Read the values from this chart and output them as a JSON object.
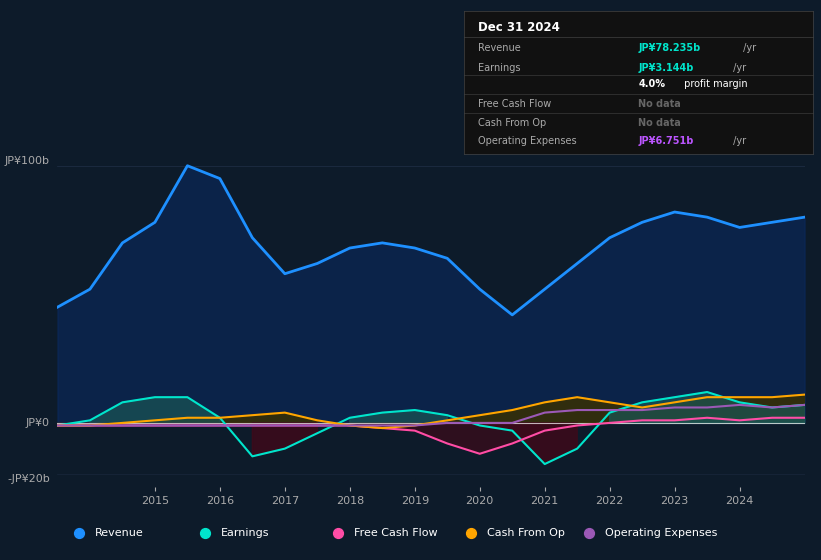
{
  "bg_color": "#0d1b2a",
  "plot_bg_color": "#0d1b2a",
  "ylim": [
    -25,
    110
  ],
  "x_years": [
    2013.5,
    2014,
    2014.5,
    2015,
    2015.5,
    2016,
    2016.5,
    2017,
    2017.5,
    2018,
    2018.5,
    2019,
    2019.5,
    2020,
    2020.5,
    2021,
    2021.5,
    2022,
    2022.5,
    2023,
    2023.5,
    2024,
    2024.5,
    2025
  ],
  "revenue": [
    45,
    52,
    70,
    78,
    100,
    95,
    72,
    58,
    62,
    68,
    70,
    68,
    64,
    52,
    42,
    52,
    62,
    72,
    78,
    82,
    80,
    76,
    78,
    80
  ],
  "earnings": [
    -1,
    1,
    8,
    10,
    10,
    2,
    -13,
    -10,
    -4,
    2,
    4,
    5,
    3,
    -1,
    -3,
    -16,
    -10,
    4,
    8,
    10,
    12,
    8,
    6,
    7
  ],
  "free_cash_flow": [
    -1,
    -1,
    -1,
    -1,
    -1,
    -1,
    -1,
    -1,
    -1,
    -1,
    -2,
    -3,
    -8,
    -12,
    -8,
    -3,
    -1,
    0,
    1,
    1,
    2,
    1,
    2,
    2
  ],
  "cash_from_op": [
    -1,
    -1,
    0,
    1,
    2,
    2,
    3,
    4,
    1,
    -1,
    -2,
    -1,
    1,
    3,
    5,
    8,
    10,
    8,
    6,
    8,
    10,
    10,
    10,
    11
  ],
  "operating_expenses": [
    -1,
    -1,
    -1,
    -1,
    -1,
    -1,
    -1,
    -1,
    -1,
    -1,
    -1,
    -1,
    0,
    0,
    0,
    4,
    5,
    5,
    5,
    6,
    6,
    7,
    6,
    7
  ],
  "revenue_color": "#1e90ff",
  "earnings_color": "#00e5cc",
  "fcf_color": "#ff4da6",
  "cashop_color": "#ffa500",
  "opex_color": "#9b59b6",
  "legend": [
    {
      "label": "Revenue",
      "color": "#1e90ff"
    },
    {
      "label": "Earnings",
      "color": "#00e5cc"
    },
    {
      "label": "Free Cash Flow",
      "color": "#ff4da6"
    },
    {
      "label": "Cash From Op",
      "color": "#ffa500"
    },
    {
      "label": "Operating Expenses",
      "color": "#9b59b6"
    }
  ]
}
